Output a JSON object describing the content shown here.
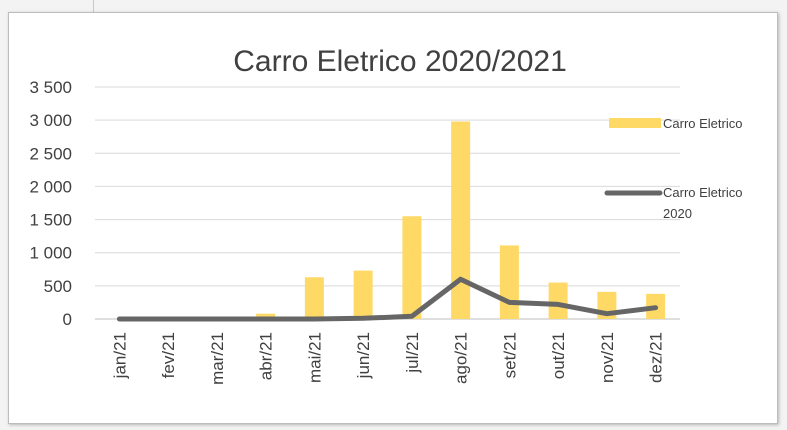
{
  "chart_data": {
    "type": "bar",
    "title": "Carro Eletrico 2020/2021",
    "categories": [
      "jan/21",
      "fev/21",
      "mar/21",
      "abr/21",
      "mai/21",
      "jun/21",
      "jul/21",
      "ago/21",
      "set/21",
      "out/21",
      "nov/21",
      "dez/21"
    ],
    "ylim": [
      0,
      3500
    ],
    "yticks": [
      0,
      500,
      1000,
      1500,
      2000,
      2500,
      3000,
      3500
    ],
    "ytick_labels": [
      "0",
      "500",
      "1 000",
      "1 500",
      "2 000",
      "2 500",
      "3 000",
      "3 500"
    ],
    "grid": true,
    "legend_position": "right",
    "series": [
      {
        "name": "Carro Eletrico",
        "kind": "bar",
        "color": "#ffd966",
        "values": [
          0,
          0,
          0,
          80,
          630,
          730,
          1550,
          2980,
          1110,
          550,
          410,
          380
        ]
      },
      {
        "name": "Carro Eletrico 2020",
        "kind": "line",
        "color": "#666666",
        "values": [
          0,
          0,
          0,
          0,
          0,
          10,
          40,
          600,
          250,
          220,
          80,
          170
        ]
      }
    ]
  }
}
